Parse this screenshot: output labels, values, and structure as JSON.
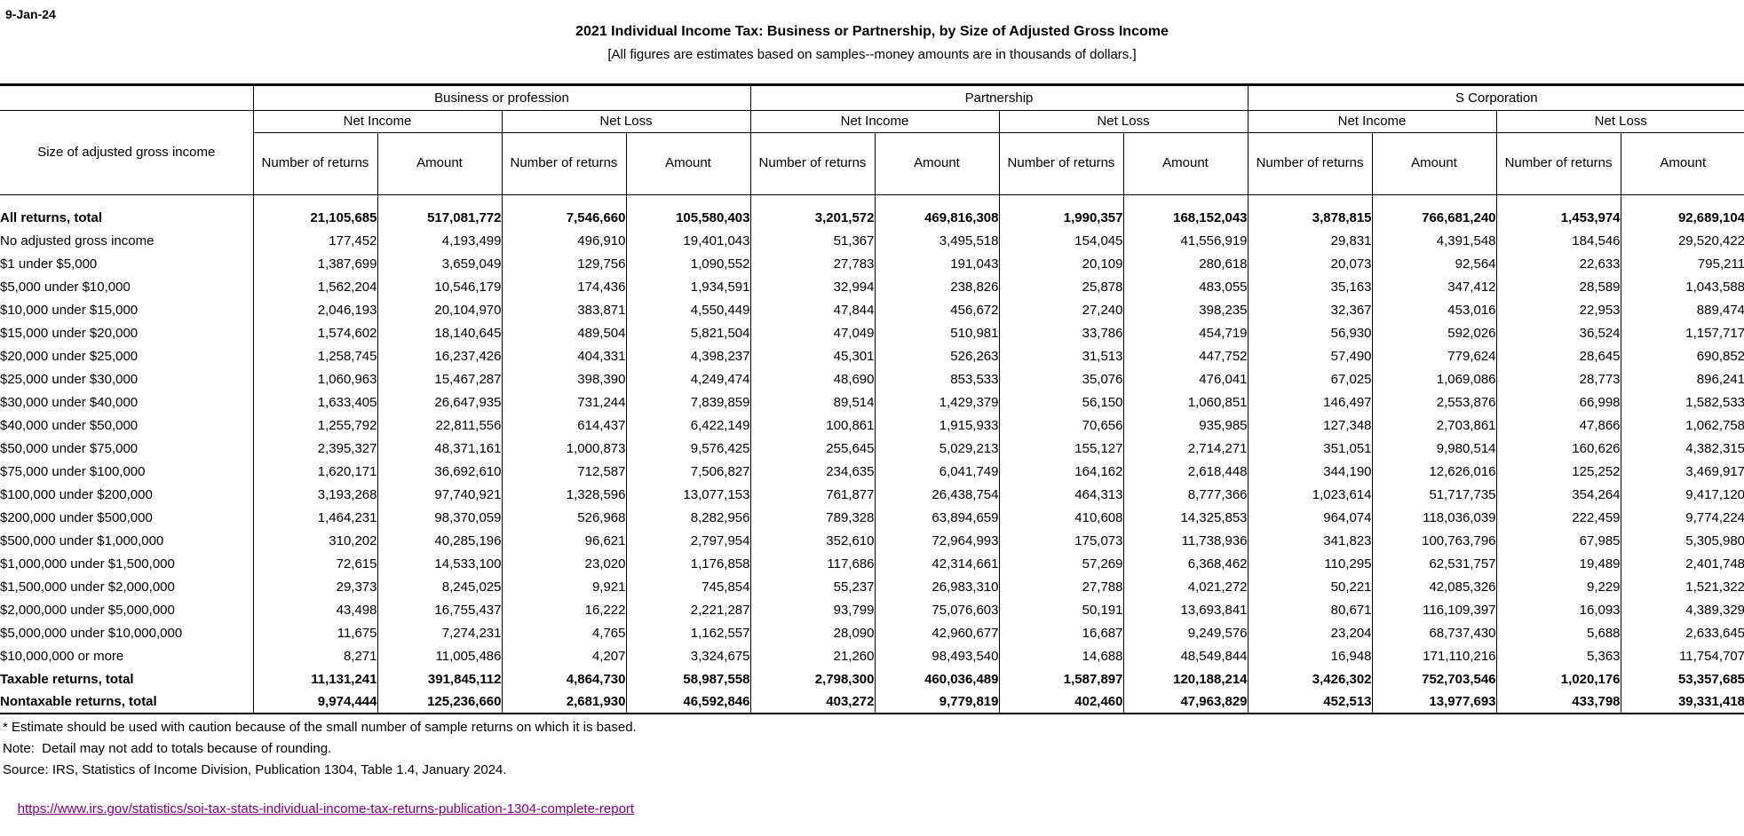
{
  "page": {
    "date": "9-Jan-24",
    "title": "2021 Individual Income Tax: Business or Partnership, by Size of Adjusted Gross Income",
    "subtitle": "[All figures are estimates based on samples--money amounts are in thousands of dollars.]"
  },
  "colors": {
    "link": "#800080",
    "border": "#000000",
    "text": "#000000",
    "background": "#ffffff"
  },
  "table": {
    "row_header": "Size of adjusted gross income",
    "groups": [
      {
        "label": "Business or profession",
        "subgroups": [
          "Net Income",
          "Net Loss"
        ]
      },
      {
        "label": "Partnership",
        "subgroups": [
          "Net Income",
          "Net Loss"
        ]
      },
      {
        "label": "S Corporation",
        "subgroups": [
          "Net Income",
          "Net Loss"
        ]
      }
    ],
    "col_headers": {
      "number": "Number of returns",
      "amount": "Amount"
    },
    "rows": [
      {
        "label": "All returns, total",
        "bold": true,
        "values": [
          "21,105,685",
          "517,081,772",
          "7,546,660",
          "105,580,403",
          "3,201,572",
          "469,816,308",
          "1,990,357",
          "168,152,043",
          "3,878,815",
          "766,681,240",
          "1,453,974",
          "92,689,104"
        ]
      },
      {
        "label": "No adjusted gross income",
        "bold": false,
        "values": [
          "177,452",
          "4,193,499",
          "496,910",
          "19,401,043",
          "51,367",
          "3,495,518",
          "154,045",
          "41,556,919",
          "29,831",
          "4,391,548",
          "184,546",
          "29,520,422"
        ]
      },
      {
        "label": "$1 under $5,000",
        "bold": false,
        "values": [
          "1,387,699",
          "3,659,049",
          "129,756",
          "1,090,552",
          "27,783",
          "191,043",
          "20,109",
          "280,618",
          "20,073",
          "92,564",
          "22,633",
          "795,211"
        ]
      },
      {
        "label": "$5,000 under $10,000",
        "bold": false,
        "values": [
          "1,562,204",
          "10,546,179",
          "174,436",
          "1,934,591",
          "32,994",
          "238,826",
          "25,878",
          "483,055",
          "35,163",
          "347,412",
          "28,589",
          "1,043,588"
        ]
      },
      {
        "label": "$10,000 under $15,000",
        "bold": false,
        "values": [
          "2,046,193",
          "20,104,970",
          "383,871",
          "4,550,449",
          "47,844",
          "456,672",
          "27,240",
          "398,235",
          "32,367",
          "453,016",
          "22,953",
          "889,474"
        ]
      },
      {
        "label": "$15,000 under $20,000",
        "bold": false,
        "values": [
          "1,574,602",
          "18,140,645",
          "489,504",
          "5,821,504",
          "47,049",
          "510,981",
          "33,786",
          "454,719",
          "56,930",
          "592,026",
          "36,524",
          "1,157,717"
        ]
      },
      {
        "label": "$20,000 under $25,000",
        "bold": false,
        "values": [
          "1,258,745",
          "16,237,426",
          "404,331",
          "4,398,237",
          "45,301",
          "526,263",
          "31,513",
          "447,752",
          "57,490",
          "779,624",
          "28,645",
          "690,852"
        ]
      },
      {
        "label": "$25,000 under $30,000",
        "bold": false,
        "values": [
          "1,060,963",
          "15,467,287",
          "398,390",
          "4,249,474",
          "48,690",
          "853,533",
          "35,076",
          "476,041",
          "67,025",
          "1,069,086",
          "28,773",
          "896,241"
        ]
      },
      {
        "label": "$30,000 under $40,000",
        "bold": false,
        "values": [
          "1,633,405",
          "26,647,935",
          "731,244",
          "7,839,859",
          "89,514",
          "1,429,379",
          "56,150",
          "1,060,851",
          "146,497",
          "2,553,876",
          "66,998",
          "1,582,533"
        ]
      },
      {
        "label": "$40,000 under $50,000",
        "bold": false,
        "values": [
          "1,255,792",
          "22,811,556",
          "614,437",
          "6,422,149",
          "100,861",
          "1,915,933",
          "70,656",
          "935,985",
          "127,348",
          "2,703,861",
          "47,866",
          "1,062,758"
        ]
      },
      {
        "label": "$50,000 under $75,000",
        "bold": false,
        "values": [
          "2,395,327",
          "48,371,161",
          "1,000,873",
          "9,576,425",
          "255,645",
          "5,029,213",
          "155,127",
          "2,714,271",
          "351,051",
          "9,980,514",
          "160,626",
          "4,382,315"
        ]
      },
      {
        "label": "$75,000 under $100,000",
        "bold": false,
        "values": [
          "1,620,171",
          "36,692,610",
          "712,587",
          "7,506,827",
          "234,635",
          "6,041,749",
          "164,162",
          "2,618,448",
          "344,190",
          "12,626,016",
          "125,252",
          "3,469,917"
        ]
      },
      {
        "label": "$100,000 under $200,000",
        "bold": false,
        "values": [
          "3,193,268",
          "97,740,921",
          "1,328,596",
          "13,077,153",
          "761,877",
          "26,438,754",
          "464,313",
          "8,777,366",
          "1,023,614",
          "51,717,735",
          "354,264",
          "9,417,120"
        ]
      },
      {
        "label": "$200,000 under $500,000",
        "bold": false,
        "values": [
          "1,464,231",
          "98,370,059",
          "526,968",
          "8,282,956",
          "789,328",
          "63,894,659",
          "410,608",
          "14,325,853",
          "964,074",
          "118,036,039",
          "222,459",
          "9,774,224"
        ]
      },
      {
        "label": "$500,000 under $1,000,000",
        "bold": false,
        "values": [
          "310,202",
          "40,285,196",
          "96,621",
          "2,797,954",
          "352,610",
          "72,964,993",
          "175,073",
          "11,738,936",
          "341,823",
          "100,763,796",
          "67,985",
          "5,305,980"
        ]
      },
      {
        "label": "$1,000,000 under $1,500,000",
        "bold": false,
        "values": [
          "72,615",
          "14,533,100",
          "23,020",
          "1,176,858",
          "117,686",
          "42,314,661",
          "57,269",
          "6,368,462",
          "110,295",
          "62,531,757",
          "19,489",
          "2,401,748"
        ]
      },
      {
        "label": "$1,500,000 under $2,000,000",
        "bold": false,
        "values": [
          "29,373",
          "8,245,025",
          "9,921",
          "745,854",
          "55,237",
          "26,983,310",
          "27,788",
          "4,021,272",
          "50,221",
          "42,085,326",
          "9,229",
          "1,521,322"
        ]
      },
      {
        "label": "$2,000,000 under $5,000,000",
        "bold": false,
        "values": [
          "43,498",
          "16,755,437",
          "16,222",
          "2,221,287",
          "93,799",
          "75,076,603",
          "50,191",
          "13,693,841",
          "80,671",
          "116,109,397",
          "16,093",
          "4,389,329"
        ]
      },
      {
        "label": "$5,000,000 under $10,000,000",
        "bold": false,
        "values": [
          "11,675",
          "7,274,231",
          "4,765",
          "1,162,557",
          "28,090",
          "42,960,677",
          "16,687",
          "9,249,576",
          "23,204",
          "68,737,430",
          "5,688",
          "2,633,645"
        ]
      },
      {
        "label": "$10,000,000 or more",
        "bold": false,
        "values": [
          "8,271",
          "11,005,486",
          "4,207",
          "3,324,675",
          "21,260",
          "98,493,540",
          "14,688",
          "48,549,844",
          "16,948",
          "171,110,216",
          "5,363",
          "11,754,707"
        ]
      },
      {
        "label": "Taxable returns, total",
        "bold": true,
        "values": [
          "11,131,241",
          "391,845,112",
          "4,864,730",
          "58,987,558",
          "2,798,300",
          "460,036,489",
          "1,587,897",
          "120,188,214",
          "3,426,302",
          "752,703,546",
          "1,020,176",
          "53,357,685"
        ]
      },
      {
        "label": "Nontaxable returns, total",
        "bold": true,
        "values": [
          "9,974,444",
          "125,236,660",
          "2,681,930",
          "46,592,846",
          "403,272",
          "9,779,819",
          "402,460",
          "47,963,829",
          "452,513",
          "13,977,693",
          "433,798",
          "39,331,418"
        ]
      }
    ]
  },
  "footer": {
    "footnote": "* Estimate should be used with caution because of the small number of sample returns on which it is based.",
    "note": "Note:  Detail may not add to totals because of rounding.",
    "source": "Source: IRS, Statistics of Income Division, Publication 1304, Table 1.4, January 2024.",
    "link": "https://www.irs.gov/statistics/soi-tax-stats-individual-income-tax-returns-publication-1304-complete-report"
  }
}
